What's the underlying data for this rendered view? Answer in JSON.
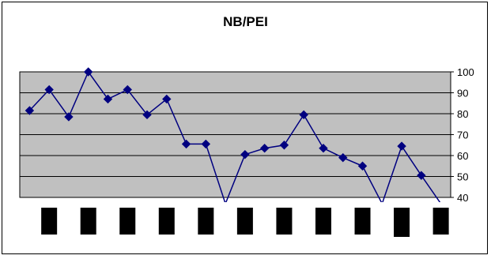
{
  "chart_data": {
    "type": "line",
    "title": "NB/PEI",
    "xlabel": "",
    "ylabel": "",
    "categories": [
      "",
      "",
      "",
      "",
      "",
      "",
      "",
      "",
      "",
      "",
      "",
      "",
      "",
      "",
      "",
      "",
      "",
      "",
      "",
      "",
      "",
      ""
    ],
    "series": [
      {
        "values": [
          81.5,
          91.5,
          78.5,
          100,
          87,
          91.5,
          79.5,
          87,
          65.5,
          65.5,
          37,
          60.5,
          63.5,
          65,
          79.5,
          63.5,
          59,
          55,
          37,
          64.5,
          50.5,
          37
        ]
      }
    ],
    "ylim": [
      40,
      100
    ],
    "y_ticks": [
      "40",
      "50",
      "60",
      "70",
      "80",
      "90",
      "100"
    ],
    "y_axis_side": "right",
    "grid": "horizontal",
    "legend": "none",
    "colors": {
      "plot_background": "#c0c0c0",
      "series_line": "#000080",
      "gridline": "#000000",
      "x_tick_label_blocks": "#000000"
    }
  }
}
